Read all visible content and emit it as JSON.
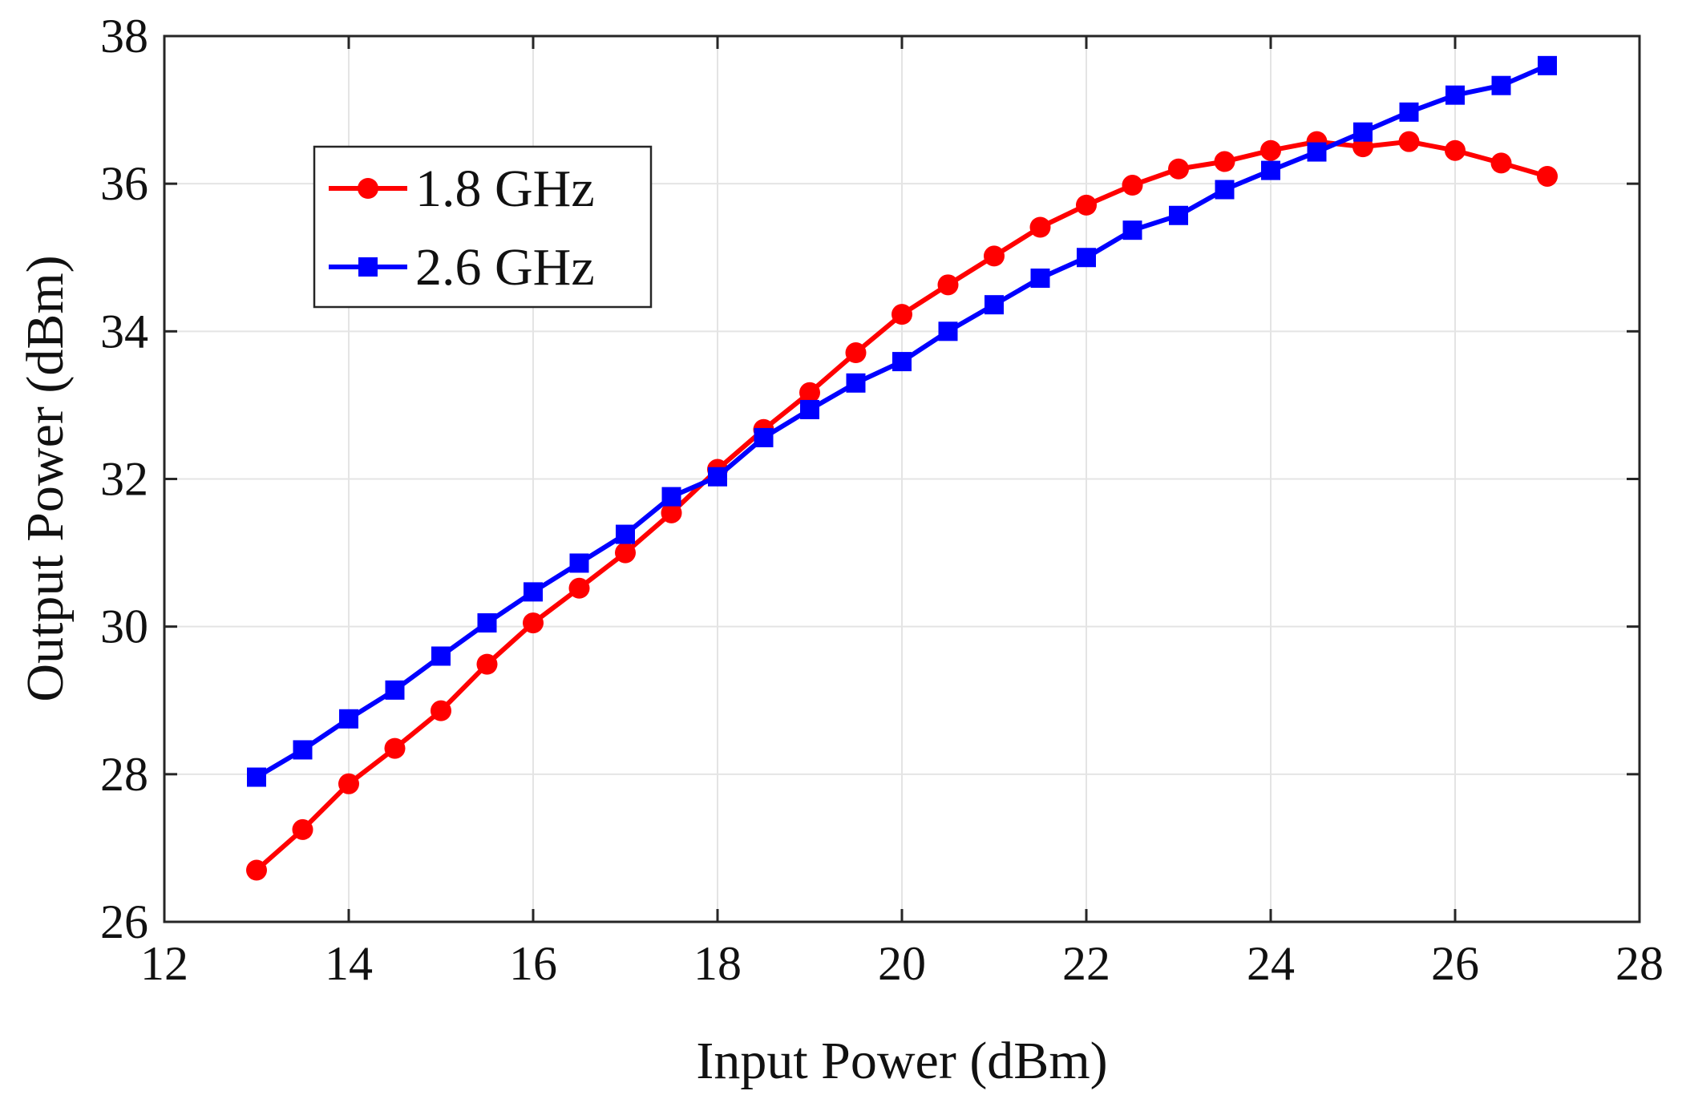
{
  "chart_data": {
    "type": "line",
    "title": "",
    "xlabel": "Input Power (dBm)",
    "ylabel": "Output Power (dBm)",
    "xlim": [
      12,
      28
    ],
    "ylim": [
      26,
      38
    ],
    "xticks": [
      12,
      14,
      16,
      18,
      20,
      22,
      24,
      26,
      28
    ],
    "yticks": [
      26,
      28,
      30,
      32,
      34,
      36,
      38
    ],
    "grid": true,
    "legend_position": "upper-left",
    "x": [
      13,
      13.5,
      14,
      14.5,
      15,
      15.5,
      16,
      16.5,
      17,
      17.5,
      18,
      18.5,
      19,
      19.5,
      20,
      20.5,
      21,
      21.5,
      22,
      22.5,
      23,
      23.5,
      24,
      24.5,
      25,
      25.5,
      26,
      26.5,
      27
    ],
    "series": [
      {
        "name": "1.8 GHz",
        "color": "#ff0000",
        "marker": "circle",
        "values": [
          26.7,
          27.25,
          27.87,
          28.35,
          28.86,
          29.49,
          30.05,
          30.52,
          31.0,
          31.54,
          32.13,
          32.67,
          33.17,
          33.71,
          34.23,
          34.63,
          35.02,
          35.41,
          35.71,
          35.98,
          36.2,
          36.3,
          36.45,
          36.57,
          36.5,
          36.57,
          36.45,
          36.28,
          36.1
        ]
      },
      {
        "name": "2.6 GHz",
        "color": "#0000ff",
        "marker": "square",
        "values": [
          27.96,
          28.33,
          28.75,
          29.14,
          29.6,
          30.05,
          30.47,
          30.86,
          31.25,
          31.76,
          32.03,
          32.56,
          32.94,
          33.3,
          33.59,
          34.0,
          34.36,
          34.72,
          35.0,
          35.37,
          35.57,
          35.92,
          36.18,
          36.43,
          36.7,
          36.97,
          37.2,
          37.33,
          37.6
        ]
      }
    ]
  }
}
